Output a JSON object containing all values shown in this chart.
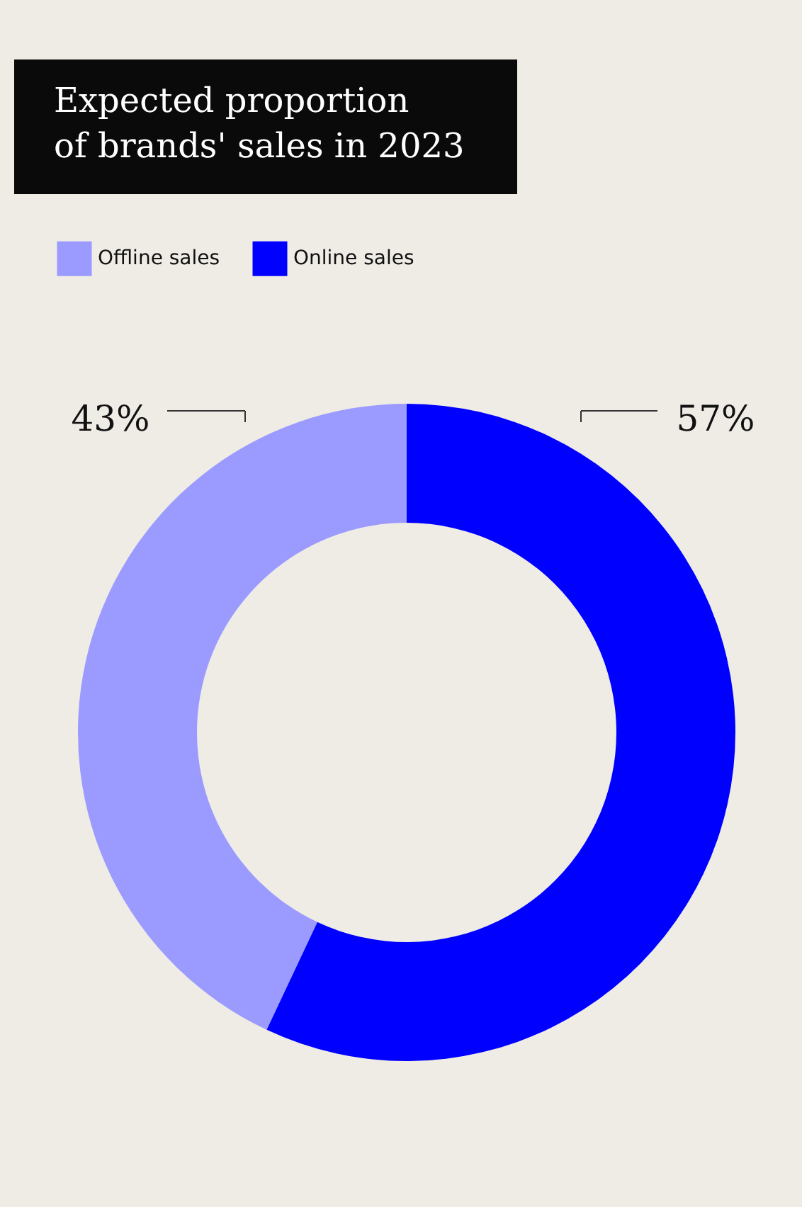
{
  "chart_data": {
    "type": "donut",
    "title": "Expected proportion of brands' sales in 2023",
    "categories": [
      "Offline sales",
      "Online sales"
    ],
    "values": [
      43,
      57
    ],
    "colors": [
      "#9b9bff",
      "#0000ff"
    ],
    "value_labels": [
      "43%",
      "57%"
    ],
    "legend": "top left"
  }
}
